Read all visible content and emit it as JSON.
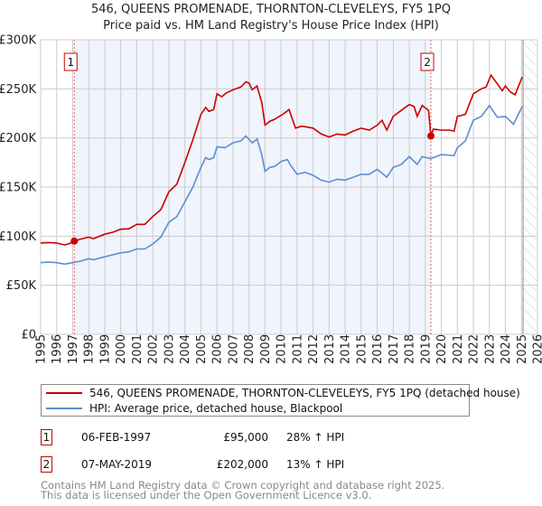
{
  "chart_data": {
    "type": "line",
    "title": "546, QUEENS PROMENADE, THORNTON-CLEVELEYS, FY5 1PQ",
    "subtitle": "Price paid vs. HM Land Registry's House Price Index (HPI)",
    "xlim": [
      1995,
      2026
    ],
    "ylim": [
      0,
      300000
    ],
    "x_ticks": [
      "1995",
      "1996",
      "1997",
      "1998",
      "1999",
      "2000",
      "2001",
      "2002",
      "2003",
      "2004",
      "2005",
      "2006",
      "2007",
      "2008",
      "2009",
      "2010",
      "2011",
      "2012",
      "2013",
      "2014",
      "2015",
      "2016",
      "2017",
      "2018",
      "2019",
      "2020",
      "2021",
      "2022",
      "2023",
      "2024",
      "2025",
      "2026"
    ],
    "y_ticks": [
      {
        "v": 0,
        "label": "£0"
      },
      {
        "v": 50000,
        "label": "£50K"
      },
      {
        "v": 100000,
        "label": "£100K"
      },
      {
        "v": 150000,
        "label": "£150K"
      },
      {
        "v": 200000,
        "label": "£200K"
      },
      {
        "v": 250000,
        "label": "£250K"
      },
      {
        "v": 300000,
        "label": "£300K"
      }
    ],
    "grid": true,
    "forecast_hatch_from": 2025.1,
    "series": [
      {
        "name": "546, QUEENS PROMENADE, THORNTON-CLEVELEYS, FY5 1PQ (detached house)",
        "color": "#cc0000",
        "points": [
          [
            1995,
            93
          ],
          [
            1995.5,
            93.5
          ],
          [
            1996,
            93
          ],
          [
            1996.5,
            91
          ],
          [
            1996.8,
            92.5
          ],
          [
            1997.1,
            95
          ],
          [
            1997.5,
            97
          ],
          [
            1998,
            99
          ],
          [
            1998.3,
            97.5
          ],
          [
            1999,
            102
          ],
          [
            1999.5,
            104
          ],
          [
            2000,
            107
          ],
          [
            2000.5,
            107.5
          ],
          [
            2001,
            112
          ],
          [
            2001.5,
            112
          ],
          [
            2002,
            120
          ],
          [
            2002.5,
            127
          ],
          [
            2003,
            145
          ],
          [
            2003.5,
            153
          ],
          [
            2004,
            175
          ],
          [
            2004.5,
            198
          ],
          [
            2005,
            224
          ],
          [
            2005.3,
            231
          ],
          [
            2005.5,
            227
          ],
          [
            2005.8,
            229
          ],
          [
            2006,
            245
          ],
          [
            2006.3,
            242
          ],
          [
            2006.6,
            246
          ],
          [
            2007,
            249
          ],
          [
            2007.5,
            252
          ],
          [
            2007.8,
            257
          ],
          [
            2008,
            256
          ],
          [
            2008.2,
            249
          ],
          [
            2008.5,
            253
          ],
          [
            2008.8,
            236
          ],
          [
            2009,
            213
          ],
          [
            2009.3,
            217
          ],
          [
            2009.6,
            219
          ],
          [
            2010.1,
            224
          ],
          [
            2010.5,
            229
          ],
          [
            2010.9,
            210
          ],
          [
            2011.3,
            212
          ],
          [
            2012,
            210
          ],
          [
            2012.5,
            204
          ],
          [
            2013,
            201
          ],
          [
            2013.5,
            204
          ],
          [
            2014,
            203
          ],
          [
            2014.5,
            207
          ],
          [
            2015,
            210
          ],
          [
            2015.5,
            208
          ],
          [
            2016,
            213
          ],
          [
            2016.3,
            218
          ],
          [
            2016.6,
            208
          ],
          [
            2017,
            222
          ],
          [
            2017.5,
            228
          ],
          [
            2018,
            234
          ],
          [
            2018.3,
            232
          ],
          [
            2018.5,
            222
          ],
          [
            2018.8,
            233
          ],
          [
            2019.2,
            228
          ],
          [
            2019.35,
            202
          ],
          [
            2019.5,
            209
          ],
          [
            2020,
            208
          ],
          [
            2020.5,
            208
          ],
          [
            2020.8,
            207
          ],
          [
            2021,
            222
          ],
          [
            2021.5,
            224
          ],
          [
            2022,
            245
          ],
          [
            2022.5,
            250
          ],
          [
            2022.8,
            252
          ],
          [
            2023.1,
            264
          ],
          [
            2023.5,
            255
          ],
          [
            2023.8,
            248
          ],
          [
            2024,
            253
          ],
          [
            2024.3,
            247
          ],
          [
            2024.6,
            244
          ],
          [
            2024.8,
            252
          ],
          [
            2025.05,
            262
          ]
        ]
      },
      {
        "name": "HPI: Average price, detached house, Blackpool",
        "color": "#5b8fd0",
        "points": [
          [
            1995,
            73
          ],
          [
            1995.5,
            73.5
          ],
          [
            1996,
            73
          ],
          [
            1996.5,
            71.5
          ],
          [
            1997,
            73
          ],
          [
            1997.5,
            74.5
          ],
          [
            1998,
            77
          ],
          [
            1998.3,
            76
          ],
          [
            1999,
            79
          ],
          [
            1999.5,
            81
          ],
          [
            2000,
            83
          ],
          [
            2000.5,
            84
          ],
          [
            2001,
            87
          ],
          [
            2001.5,
            87
          ],
          [
            2002,
            92
          ],
          [
            2002.5,
            99
          ],
          [
            2003,
            114
          ],
          [
            2003.5,
            120
          ],
          [
            2004,
            135
          ],
          [
            2004.5,
            150
          ],
          [
            2005,
            170
          ],
          [
            2005.3,
            180
          ],
          [
            2005.5,
            178
          ],
          [
            2005.8,
            180
          ],
          [
            2006,
            191
          ],
          [
            2006.5,
            190
          ],
          [
            2007,
            195
          ],
          [
            2007.5,
            197
          ],
          [
            2007.8,
            202
          ],
          [
            2008.2,
            195
          ],
          [
            2008.5,
            199
          ],
          [
            2008.8,
            183
          ],
          [
            2009,
            166
          ],
          [
            2009.3,
            170
          ],
          [
            2009.6,
            171
          ],
          [
            2010,
            176
          ],
          [
            2010.4,
            178
          ],
          [
            2010.6,
            172
          ],
          [
            2011,
            163
          ],
          [
            2011.5,
            165
          ],
          [
            2012,
            162
          ],
          [
            2012.5,
            157
          ],
          [
            2013,
            155
          ],
          [
            2013.5,
            158
          ],
          [
            2014,
            157
          ],
          [
            2014.5,
            160
          ],
          [
            2015,
            163
          ],
          [
            2015.5,
            163
          ],
          [
            2016,
            168
          ],
          [
            2016.6,
            160
          ],
          [
            2017,
            170
          ],
          [
            2017.5,
            173
          ],
          [
            2018,
            181
          ],
          [
            2018.5,
            173
          ],
          [
            2018.8,
            181
          ],
          [
            2019.35,
            179
          ],
          [
            2020,
            183
          ],
          [
            2020.8,
            182
          ],
          [
            2021,
            190
          ],
          [
            2021.5,
            197
          ],
          [
            2022,
            218
          ],
          [
            2022.5,
            222
          ],
          [
            2023,
            233
          ],
          [
            2023.5,
            221
          ],
          [
            2024,
            222
          ],
          [
            2024.5,
            214
          ],
          [
            2025.05,
            232
          ]
        ]
      }
    ],
    "value_unit": "thousand GBP",
    "sales": [
      {
        "id": "1",
        "x": 1997.1,
        "value": 95000,
        "date": "06-FEB-1997",
        "price": "£95,000",
        "hpi": "28% ↑ HPI"
      },
      {
        "id": "2",
        "x": 2019.35,
        "value": 202000,
        "date": "07-MAY-2019",
        "price": "£202,000",
        "hpi": "13% ↑ HPI"
      }
    ],
    "legend_placement": "below"
  },
  "footer": {
    "line1": "Contains HM Land Registry data © Crown copyright and database right 2025.",
    "line2": "This data is licensed under the Open Government Licence v3.0."
  }
}
